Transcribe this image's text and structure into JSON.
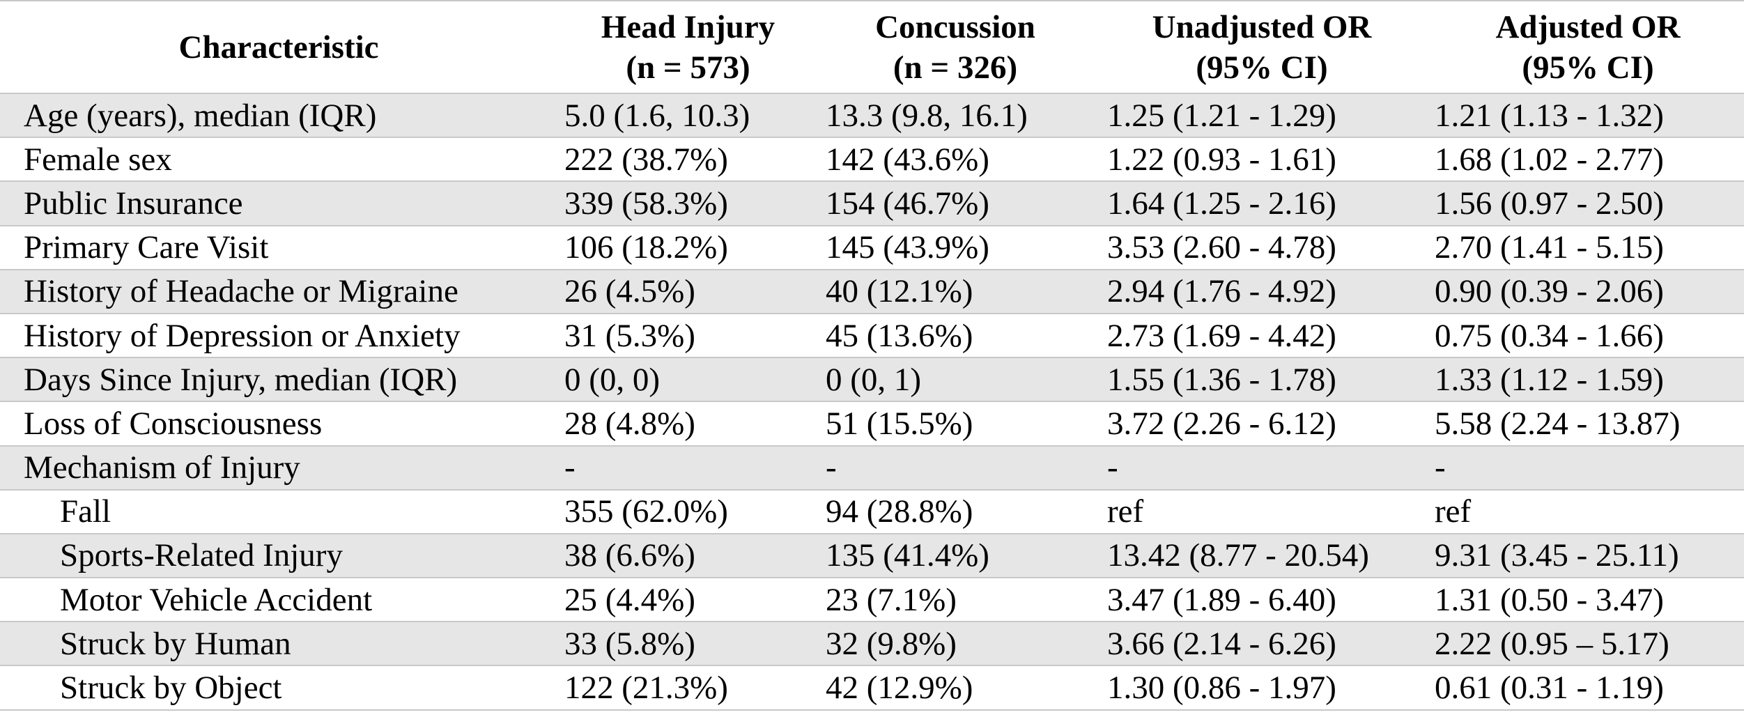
{
  "table": {
    "headers": [
      {
        "lines": [
          "Characteristic"
        ]
      },
      {
        "lines": [
          "Head Injury",
          "(n = 573)"
        ]
      },
      {
        "lines": [
          "Concussion",
          "(n = 326)"
        ]
      },
      {
        "lines": [
          "Unadjusted OR",
          "(95% CI)"
        ]
      },
      {
        "lines": [
          "Adjusted OR",
          "(95% CI)"
        ]
      }
    ],
    "rows": [
      {
        "label": "Age (years), median (IQR)",
        "indent": false,
        "head_injury": "5.0 (1.6, 10.3)",
        "concussion": "13.3 (9.8, 16.1)",
        "unadjusted_or": "1.25 (1.21 - 1.29)",
        "adjusted_or": "1.21 (1.13 - 1.32)"
      },
      {
        "label": "Female sex",
        "indent": false,
        "head_injury": "222 (38.7%)",
        "concussion": "142 (43.6%)",
        "unadjusted_or": "1.22 (0.93 - 1.61)",
        "adjusted_or": "1.68 (1.02 - 2.77)"
      },
      {
        "label": "Public Insurance",
        "indent": false,
        "head_injury": "339 (58.3%)",
        "concussion": "154 (46.7%)",
        "unadjusted_or": "1.64 (1.25 - 2.16)",
        "adjusted_or": "1.56 (0.97 - 2.50)"
      },
      {
        "label": "Primary Care Visit",
        "indent": false,
        "head_injury": "106 (18.2%)",
        "concussion": "145 (43.9%)",
        "unadjusted_or": "3.53 (2.60 - 4.78)",
        "adjusted_or": "2.70 (1.41 - 5.15)"
      },
      {
        "label": "History of Headache or Migraine",
        "indent": false,
        "head_injury": "26 (4.5%)",
        "concussion": "40 (12.1%)",
        "unadjusted_or": "2.94 (1.76 - 4.92)",
        "adjusted_or": "0.90 (0.39 - 2.06)"
      },
      {
        "label": "History of Depression or Anxiety",
        "indent": false,
        "head_injury": "31 (5.3%)",
        "concussion": "45 (13.6%)",
        "unadjusted_or": "2.73 (1.69 - 4.42)",
        "adjusted_or": "0.75 (0.34 - 1.66)"
      },
      {
        "label": "Days Since Injury, median (IQR)",
        "indent": false,
        "head_injury": "0 (0, 0)",
        "concussion": "0 (0, 1)",
        "unadjusted_or": "1.55 (1.36 - 1.78)",
        "adjusted_or": "1.33 (1.12 - 1.59)"
      },
      {
        "label": "Loss of Consciousness",
        "indent": false,
        "head_injury": "28 (4.8%)",
        "concussion": "51 (15.5%)",
        "unadjusted_or": "3.72 (2.26 - 6.12)",
        "adjusted_or": "5.58 (2.24 - 13.87)"
      },
      {
        "label": "Mechanism of Injury",
        "indent": false,
        "head_injury": "-",
        "concussion": "-",
        "unadjusted_or": "-",
        "adjusted_or": "-"
      },
      {
        "label": "Fall",
        "indent": true,
        "head_injury": "355 (62.0%)",
        "concussion": "94 (28.8%)",
        "unadjusted_or": "ref",
        "adjusted_or": "ref"
      },
      {
        "label": "Sports-Related Injury",
        "indent": true,
        "head_injury": "38 (6.6%)",
        "concussion": "135 (41.4%)",
        "unadjusted_or": "13.42 (8.77 - 20.54)",
        "adjusted_or": "9.31 (3.45 - 25.11)"
      },
      {
        "label": "Motor Vehicle Accident",
        "indent": true,
        "head_injury": "25 (4.4%)",
        "concussion": "23 (7.1%)",
        "unadjusted_or": "3.47 (1.89 - 6.40)",
        "adjusted_or": "1.31 (0.50 - 3.47)"
      },
      {
        "label": "Struck by Human",
        "indent": true,
        "head_injury": "33 (5.8%)",
        "concussion": "32 (9.8%)",
        "unadjusted_or": "3.66 (2.14 - 6.26)",
        "adjusted_or": "2.22 (0.95 – 5.17)"
      },
      {
        "label": "Struck by Object",
        "indent": true,
        "head_injury": "122 (21.3%)",
        "concussion": "42 (12.9%)",
        "unadjusted_or": "1.30 (0.86 - 1.97)",
        "adjusted_or": "0.61 (0.31 - 1.19)"
      }
    ]
  },
  "colors": {
    "shaded_row": "#e6e6e6",
    "rule": "#c8c8c8",
    "text": "#000000"
  }
}
